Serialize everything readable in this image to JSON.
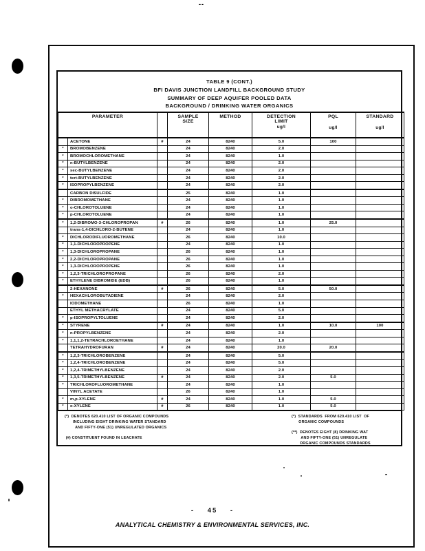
{
  "page": {
    "top_mark": "--",
    "page_number": "- 45 -",
    "footer": "ANALYTICAL CHEMISTRY & ENVIRONMENTAL SERVICES, INC."
  },
  "table": {
    "title_lines": [
      "TABLE 9 (CONT.)",
      "BFI DAVIS JUNCTION LANDFILL BACKGROUND STUDY",
      "SUMMARY OF DEEP AQUIFER POOLED DATA",
      "BACKGROUND / DRINKING WATER ORGANICS"
    ],
    "headers": {
      "parameter": "PARAMETER",
      "sample_size_1": "SAMPLE",
      "sample_size_2": "SIZE",
      "method": "METHOD",
      "detection_limit_1": "DETECTION",
      "detection_limit_2": "LIMIT",
      "pql": "PQL",
      "standard": "STANDARD",
      "unit": "ug/l"
    },
    "rows": [
      [
        "",
        "ACETONE",
        "#",
        "24",
        "8240",
        "5.0",
        "100",
        ""
      ],
      [
        "*",
        "BROMOBENZENE",
        "",
        "24",
        "8240",
        "2.0",
        "",
        ""
      ],
      [
        "*",
        "BROMOCHLOROMETHANE",
        "",
        "24",
        "8240",
        "1.0",
        "",
        ""
      ],
      [
        "*",
        "n-BUTYLBENZENE",
        "",
        "24",
        "8240",
        "2.0",
        "",
        ""
      ],
      [
        "*",
        "sec-BUTYLBENZENE",
        "",
        "24",
        "8240",
        "2.0",
        "",
        ""
      ],
      [
        "*",
        "tert-BUTYLBENZENE",
        "",
        "24",
        "8240",
        "2.0",
        "",
        ""
      ],
      [
        "*",
        "ISOPROPYLBENZENE",
        "",
        "24",
        "8240",
        "2.0",
        "",
        ""
      ],
      [
        "",
        "CARBON DISULFIDE",
        "",
        "25",
        "8240",
        "1.0",
        "",
        ""
      ],
      [
        "*",
        "DIBROMOMETHANE",
        "",
        "24",
        "8240",
        "1.0",
        "",
        ""
      ],
      [
        "*",
        "o-CHLOROTOLUENE",
        "",
        "24",
        "8240",
        "1.0",
        "",
        ""
      ],
      [
        "*",
        "p-CHLOROTOLUENE",
        "",
        "24",
        "8240",
        "1.0",
        "",
        ""
      ],
      [
        "*",
        "1,2-DIBROMO-3-CHLOROPROPAN",
        "#",
        "26",
        "8240",
        "1.0",
        "25.0",
        ""
      ],
      [
        "",
        "trans-1,4-DICHLORO-2-BUTENE",
        "",
        "24",
        "8240",
        "1.0",
        "",
        ""
      ],
      [
        "*",
        "DICHLORODIFLUOROMETHANE",
        "",
        "26",
        "8240",
        "10.0",
        "",
        ""
      ],
      [
        "*",
        "1,1-DICHLOROPROPENE",
        "",
        "24",
        "8240",
        "1.0",
        "",
        ""
      ],
      [
        "*",
        "1,3-DICHLOROPROPANE",
        "",
        "26",
        "8240",
        "1.0",
        "",
        ""
      ],
      [
        "*",
        "2,2-DICHLOROPROPANE",
        "",
        "26",
        "8240",
        "1.0",
        "",
        ""
      ],
      [
        "*",
        "1,3-DICHLOROPROPENE",
        "",
        "26",
        "8240",
        "1.0",
        "",
        ""
      ],
      [
        "*",
        "1,2,3-TRICHLOROPROPANE",
        "",
        "26",
        "8240",
        "2.0",
        "",
        ""
      ],
      [
        "*",
        "ETHYLENE DIBROMIDE  (EDB)",
        "",
        "26",
        "8240",
        "1.0",
        "",
        ""
      ],
      [
        "",
        "2-HEXANONE",
        "#",
        "26",
        "8240",
        "5.0",
        "50.0",
        ""
      ],
      [
        "*",
        "HEXACHLOROBUTADIENE",
        "",
        "24",
        "8240",
        "2.0",
        "",
        ""
      ],
      [
        "",
        "IODOMETHANE",
        "",
        "26",
        "8240",
        "1.0",
        "",
        ""
      ],
      [
        "",
        "ETHYL METHACRYLATE",
        "",
        "24",
        "8240",
        "5.0",
        "",
        ""
      ],
      [
        "*",
        "p-ISOPROPYLTOLUENE",
        "",
        "24",
        "8240",
        "2.0",
        "",
        ""
      ],
      [
        "*",
        "STYRENE",
        "#",
        "24",
        "8240",
        "1.0",
        "10.0",
        "100"
      ],
      [
        "*",
        "n-PROPYLBENZENE",
        "",
        "24",
        "8240",
        "2.0",
        "",
        ""
      ],
      [
        "*",
        "1,1,1,2-TETRACHLOROETHANE",
        "",
        "24",
        "8240",
        "1.0",
        "",
        ""
      ],
      [
        "",
        "TETRAHYDROFURAN",
        "#",
        "24",
        "8240",
        "20.0",
        "20.0",
        ""
      ],
      [
        "*",
        "1,2,3-TRICHLOROBENZENE",
        "",
        "24",
        "8240",
        "5.0",
        "",
        ""
      ],
      [
        "*",
        "1,2,4-TRICHLOROBENZENE",
        "",
        "24",
        "8240",
        "5.0",
        "",
        ""
      ],
      [
        "*",
        "1,2,4-TRIMETHYLBENZENE",
        "",
        "24",
        "8240",
        "2.0",
        "",
        ""
      ],
      [
        "*",
        "1,3,5-TRIMETHYLBENZENE",
        "#",
        "24",
        "8240",
        "2.0",
        "5.0",
        ""
      ],
      [
        "*",
        "TRICHLOROFLUOROMETHANE",
        "",
        "24",
        "8240",
        "1.0",
        "",
        ""
      ],
      [
        "",
        "VINYL ACETATE",
        "",
        "26",
        "8240",
        "1.0",
        "",
        ""
      ],
      [
        "*",
        "m,p-XYLENE",
        "#",
        "24",
        "8240",
        "1.0",
        "5.0",
        ""
      ],
      [
        "*",
        "o-XYLENE",
        "#",
        "26",
        "8240",
        "1.0",
        "5.0",
        ""
      ]
    ]
  },
  "footnotes": {
    "left": "(*)  DENOTES 620.410 LIST OF ORGANIC COMPOUNDS\n       INCLUDING EIGHT DRINKING WATER STANDARD\n         AND FIFTY-ONE (51) UNREGULATED ORGANICS\n\n (#) CONSTITUENT FOUND IN LEACHATE",
    "right": "(*)  STANDARDS  FROM 620.410 LIST  OF\n      ORGANIC COMPOUNDS\n\n(**)  DENOTES EIGHT (8) DRINKING WAT\n        AND FIFTY-ONE (51) UNREGULATE\n       ORGANIC COMPOUNDS STANDARDS"
  }
}
